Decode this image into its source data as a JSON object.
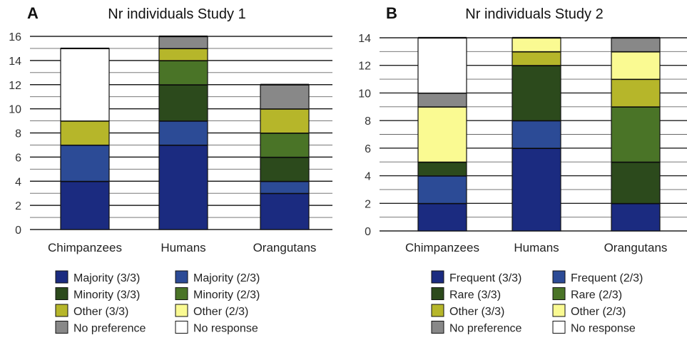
{
  "chart_data": [
    {
      "type": "bar",
      "stacked": true,
      "panel_letter": "A",
      "title": "Nr individuals Study 1",
      "categories": [
        "Chimpanzees",
        "Humans",
        "Orangutans"
      ],
      "ylim": [
        0,
        16
      ],
      "yticks": [
        0,
        2,
        4,
        6,
        8,
        10,
        12,
        14,
        16
      ],
      "grid": "horizontal, every 1 unit",
      "series": [
        {
          "name": "Majority (3/3)",
          "color": "#1b2b80",
          "values": [
            4,
            7,
            3
          ]
        },
        {
          "name": "Majority (2/3)",
          "color": "#2c4b96",
          "values": [
            3,
            2,
            1
          ]
        },
        {
          "name": "Minority (3/3)",
          "color": "#2c4a1c",
          "values": [
            0,
            3,
            2
          ]
        },
        {
          "name": "Minority (2/3)",
          "color": "#4a7427",
          "values": [
            0,
            2,
            2
          ]
        },
        {
          "name": "Other (3/3)",
          "color": "#b6b62a",
          "values": [
            2,
            1,
            2
          ]
        },
        {
          "name": "Other (2/3)",
          "color": "#fafa92",
          "values": [
            0,
            0,
            0
          ]
        },
        {
          "name": "No preference",
          "color": "#888888",
          "values": [
            0,
            1,
            2
          ]
        },
        {
          "name": "No response",
          "color": "#ffffff",
          "values": [
            6,
            0,
            0
          ]
        }
      ]
    },
    {
      "type": "bar",
      "stacked": true,
      "panel_letter": "B",
      "title": "Nr individuals Study 2",
      "categories": [
        "Chimpanzees",
        "Humans",
        "Orangutans"
      ],
      "ylim": [
        0,
        14
      ],
      "yticks": [
        0,
        2,
        4,
        6,
        8,
        10,
        12,
        14
      ],
      "grid": "horizontal, every 1 unit",
      "series": [
        {
          "name": "Frequent (3/3)",
          "color": "#1b2b80",
          "values": [
            2,
            6,
            2
          ]
        },
        {
          "name": "Frequent (2/3)",
          "color": "#2c4b96",
          "values": [
            2,
            2,
            0
          ]
        },
        {
          "name": "Rare (3/3)",
          "color": "#2c4a1c",
          "values": [
            1,
            4,
            3
          ]
        },
        {
          "name": "Rare (2/3)",
          "color": "#4a7427",
          "values": [
            0,
            0,
            4
          ]
        },
        {
          "name": "Other (3/3)",
          "color": "#b6b62a",
          "values": [
            0,
            1,
            2
          ]
        },
        {
          "name": "Other (2/3)",
          "color": "#fafa92",
          "values": [
            4,
            1,
            2
          ]
        },
        {
          "name": "No preference",
          "color": "#888888",
          "values": [
            1,
            0,
            1
          ]
        },
        {
          "name": "No response",
          "color": "#ffffff",
          "values": [
            4,
            0,
            0
          ]
        }
      ]
    }
  ]
}
